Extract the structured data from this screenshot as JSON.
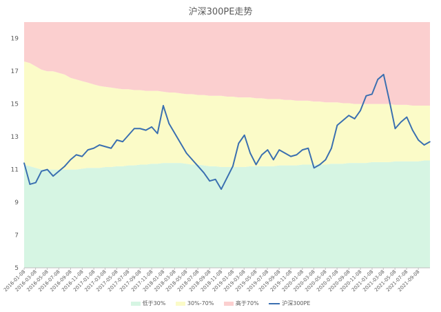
{
  "chart_data": {
    "type": "area",
    "title": "沪深300PE走势",
    "ylim": [
      5,
      20
    ],
    "y_ticks": [
      5,
      7,
      9,
      11,
      13,
      15,
      17,
      19
    ],
    "grid": false,
    "legend_position": "bottom",
    "x_tick_labels": [
      "2016-01-08",
      "2016-03-08",
      "2016-05-08",
      "2016-07-08",
      "2016-09-08",
      "2016-11-08",
      "2017-01-08",
      "2017-03-08",
      "2017-05-08",
      "2017-07-08",
      "2017-09-08",
      "2017-11-08",
      "2018-01-08",
      "2018-03-08",
      "2018-05-08",
      "2018-07-08",
      "2018-09-08",
      "2018-11-08",
      "2019-01-08",
      "2019-03-08",
      "2019-05-08",
      "2019-07-08",
      "2019-09-08",
      "2019-11-08",
      "2020-01-08",
      "2020-03-08",
      "2020-05-08",
      "2020-07-08",
      "2020-09-08",
      "2020-11-08",
      "2021-01-08",
      "2021-03-08",
      "2021-05-08",
      "2021-07-08",
      "2021-09-08"
    ],
    "x": [
      "2016-01-08",
      "2016-02-08",
      "2016-03-08",
      "2016-04-08",
      "2016-05-08",
      "2016-06-08",
      "2016-07-08",
      "2016-08-08",
      "2016-09-08",
      "2016-10-08",
      "2016-11-08",
      "2016-12-08",
      "2017-01-08",
      "2017-02-08",
      "2017-03-08",
      "2017-04-08",
      "2017-05-08",
      "2017-06-08",
      "2017-07-08",
      "2017-08-08",
      "2017-09-08",
      "2017-10-08",
      "2017-11-08",
      "2017-12-08",
      "2018-01-08",
      "2018-02-08",
      "2018-03-08",
      "2018-04-08",
      "2018-05-08",
      "2018-06-08",
      "2018-07-08",
      "2018-08-08",
      "2018-09-08",
      "2018-10-08",
      "2018-11-08",
      "2018-12-08",
      "2019-01-08",
      "2019-02-08",
      "2019-03-08",
      "2019-04-08",
      "2019-05-08",
      "2019-06-08",
      "2019-07-08",
      "2019-08-08",
      "2019-09-08",
      "2019-10-08",
      "2019-11-08",
      "2019-12-08",
      "2020-01-08",
      "2020-02-08",
      "2020-03-08",
      "2020-04-08",
      "2020-05-08",
      "2020-06-08",
      "2020-07-08",
      "2020-08-08",
      "2020-09-08",
      "2020-10-08",
      "2020-11-08",
      "2020-12-08",
      "2021-01-08",
      "2021-02-08",
      "2021-03-08",
      "2021-04-08",
      "2021-05-08",
      "2021-06-08",
      "2021-07-08",
      "2021-08-08",
      "2021-09-08",
      "2021-10-08",
      "2021-11-08"
    ],
    "series": [
      {
        "name": "低于30%",
        "color": "#d6f5e3",
        "values": [
          11.3,
          11.2,
          11.1,
          11.0,
          11.0,
          11.0,
          11.0,
          11.0,
          11.0,
          11.0,
          11.05,
          11.1,
          11.1,
          11.1,
          11.15,
          11.15,
          11.2,
          11.2,
          11.25,
          11.25,
          11.3,
          11.3,
          11.35,
          11.35,
          11.4,
          11.4,
          11.4,
          11.4,
          11.35,
          11.3,
          11.3,
          11.25,
          11.2,
          11.2,
          11.15,
          11.15,
          11.15,
          11.15,
          11.15,
          11.2,
          11.2,
          11.2,
          11.2,
          11.2,
          11.25,
          11.25,
          11.25,
          11.25,
          11.3,
          11.3,
          11.3,
          11.3,
          11.3,
          11.35,
          11.35,
          11.35,
          11.4,
          11.4,
          11.4,
          11.4,
          11.45,
          11.45,
          11.45,
          11.45,
          11.5,
          11.5,
          11.5,
          11.5,
          11.5,
          11.55,
          11.55
        ]
      },
      {
        "name": "30%-70%",
        "color": "#fbfbc8",
        "values": [
          17.6,
          17.5,
          17.3,
          17.1,
          17.0,
          17.0,
          16.9,
          16.8,
          16.6,
          16.5,
          16.4,
          16.3,
          16.2,
          16.1,
          16.05,
          16.0,
          15.95,
          15.9,
          15.9,
          15.85,
          15.85,
          15.8,
          15.8,
          15.8,
          15.75,
          15.7,
          15.7,
          15.65,
          15.6,
          15.6,
          15.55,
          15.55,
          15.5,
          15.5,
          15.5,
          15.45,
          15.45,
          15.4,
          15.4,
          15.4,
          15.35,
          15.35,
          15.3,
          15.3,
          15.3,
          15.25,
          15.25,
          15.2,
          15.2,
          15.2,
          15.15,
          15.15,
          15.1,
          15.1,
          15.1,
          15.05,
          15.05,
          15.0,
          15.0,
          15.0,
          15.0,
          15.0,
          15.0,
          15.0,
          14.95,
          14.95,
          14.95,
          14.9,
          14.9,
          14.9,
          14.9
        ]
      },
      {
        "name": "高于70%",
        "color": "#fbcfcf",
        "values": [
          20,
          20,
          20,
          20,
          20,
          20,
          20,
          20,
          20,
          20,
          20,
          20,
          20,
          20,
          20,
          20,
          20,
          20,
          20,
          20,
          20,
          20,
          20,
          20,
          20,
          20,
          20,
          20,
          20,
          20,
          20,
          20,
          20,
          20,
          20,
          20,
          20,
          20,
          20,
          20,
          20,
          20,
          20,
          20,
          20,
          20,
          20,
          20,
          20,
          20,
          20,
          20,
          20,
          20,
          20,
          20,
          20,
          20,
          20,
          20,
          20,
          20,
          20,
          20,
          20,
          20,
          20,
          20,
          20,
          20,
          20
        ]
      },
      {
        "name": "沪深300PE",
        "color": "#3a6fb0",
        "values": [
          11.4,
          10.1,
          10.2,
          10.9,
          11.0,
          10.6,
          10.9,
          11.2,
          11.6,
          11.9,
          11.8,
          12.2,
          12.3,
          12.5,
          12.4,
          12.3,
          12.8,
          12.7,
          13.1,
          13.5,
          13.5,
          13.4,
          13.6,
          13.2,
          14.9,
          13.8,
          13.2,
          12.6,
          12.0,
          11.6,
          11.2,
          10.8,
          10.3,
          10.4,
          9.8,
          10.5,
          11.2,
          12.6,
          13.1,
          12.0,
          11.3,
          11.9,
          12.2,
          11.6,
          12.2,
          12.0,
          11.8,
          11.9,
          12.2,
          12.3,
          11.1,
          11.3,
          11.6,
          12.3,
          13.7,
          14.0,
          14.3,
          14.1,
          14.6,
          15.5,
          15.6,
          16.5,
          16.8,
          15.2,
          13.5,
          13.9,
          14.2,
          13.4,
          12.8,
          12.5,
          12.7
        ]
      }
    ]
  }
}
